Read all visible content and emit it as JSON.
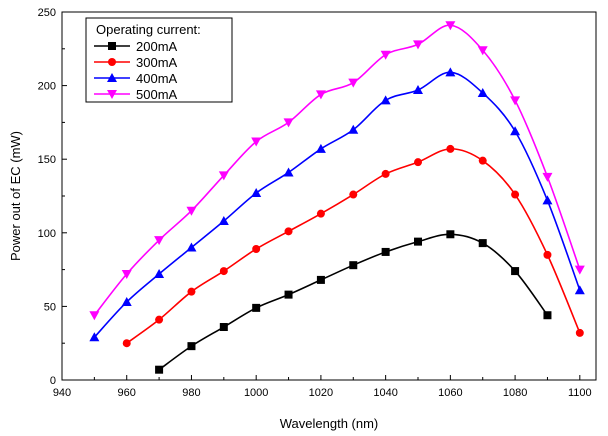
{
  "chart_data": {
    "type": "line",
    "xlabel": "Wavelength (nm)",
    "ylabel": "Power out of EC (mW)",
    "xlim": [
      940,
      1105
    ],
    "ylim": [
      0,
      250
    ],
    "xticks": [
      940,
      960,
      980,
      1000,
      1020,
      1040,
      1060,
      1080,
      1100
    ],
    "yticks": [
      0,
      50,
      100,
      150,
      200,
      250
    ],
    "grid": false,
    "legend": {
      "title": "Operating current:",
      "placement": "top-left"
    },
    "series": [
      {
        "name": "200mA",
        "color": "#000000",
        "marker": "square",
        "x": [
          970,
          980,
          990,
          1000,
          1010,
          1020,
          1030,
          1040,
          1050,
          1060,
          1070,
          1080,
          1090
        ],
        "y": [
          7,
          23,
          36,
          49,
          58,
          68,
          78,
          87,
          94,
          99,
          93,
          74,
          44
        ]
      },
      {
        "name": "300mA",
        "color": "#ff0000",
        "marker": "circle",
        "x": [
          960,
          970,
          980,
          990,
          1000,
          1010,
          1020,
          1030,
          1040,
          1050,
          1060,
          1070,
          1080,
          1090,
          1100
        ],
        "y": [
          25,
          41,
          60,
          74,
          89,
          101,
          113,
          126,
          140,
          148,
          157,
          149,
          126,
          85,
          32
        ]
      },
      {
        "name": "400mA",
        "color": "#0000ff",
        "marker": "triangle-up",
        "x": [
          950,
          960,
          970,
          980,
          990,
          1000,
          1010,
          1020,
          1030,
          1040,
          1050,
          1060,
          1070,
          1080,
          1090,
          1100
        ],
        "y": [
          29,
          53,
          72,
          90,
          108,
          127,
          141,
          157,
          170,
          190,
          197,
          209,
          195,
          169,
          122,
          61
        ]
      },
      {
        "name": "500mA",
        "color": "#ff00ff",
        "marker": "triangle-down",
        "x": [
          950,
          960,
          970,
          980,
          990,
          1000,
          1010,
          1020,
          1030,
          1040,
          1050,
          1060,
          1070,
          1080,
          1090,
          1100
        ],
        "y": [
          44,
          72,
          95,
          115,
          139,
          162,
          175,
          194,
          202,
          221,
          228,
          241,
          224,
          190,
          138,
          75
        ]
      }
    ]
  }
}
